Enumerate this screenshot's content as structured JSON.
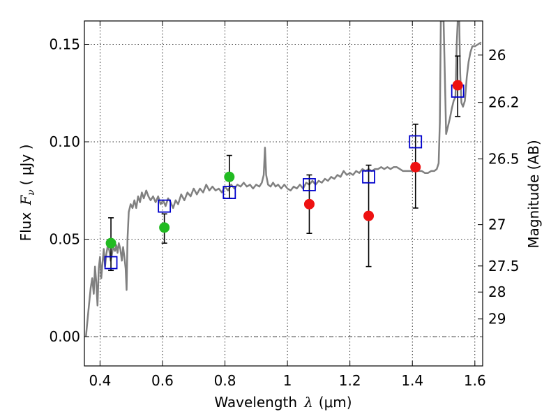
{
  "chart_data": {
    "type": "scatter",
    "title": "",
    "xlabel": "Wavelength",
    "xlabel_symbol": "λ",
    "xlabel_unit": "(μm)",
    "ylabel": "Flux",
    "ylabel_symbol": "F",
    "ylabel_subscript": "ν",
    "ylabel_unit": "( μJy )",
    "y2label": "Magnitude (AB)",
    "xlim": [
      0.35,
      1.625
    ],
    "ylim": [
      -0.015,
      0.162
    ],
    "grid": true,
    "x_ticks": [
      0.4,
      0.6,
      0.8,
      1.0,
      1.2,
      1.4,
      1.6
    ],
    "x_tick_labels": [
      "0.4",
      "0.6",
      "0.8",
      "1",
      "1.2",
      "1.4",
      "1.6"
    ],
    "y_ticks": [
      0.0,
      0.05,
      0.1,
      0.15
    ],
    "y_tick_labels": [
      "0.00",
      "0.05",
      "0.10",
      "0.15"
    ],
    "y2_ticks": [
      {
        "label": "26",
        "flux": 0.1445
      },
      {
        "label": "26.2",
        "flux": 0.1202
      },
      {
        "label": "26.5",
        "flux": 0.0912
      },
      {
        "label": "27",
        "flux": 0.0575
      },
      {
        "label": "27.5",
        "flux": 0.0363
      },
      {
        "label": "28",
        "flux": 0.0229
      },
      {
        "label": "29",
        "flux": 0.0091
      }
    ],
    "zero_line": 0.0,
    "series": [
      {
        "kind": "line",
        "color": "#808080",
        "points": [
          [
            0.355,
            0.0
          ],
          [
            0.362,
            0.012
          ],
          [
            0.37,
            0.025
          ],
          [
            0.375,
            0.03
          ],
          [
            0.38,
            0.022
          ],
          [
            0.384,
            0.036
          ],
          [
            0.388,
            0.028
          ],
          [
            0.392,
            0.016
          ],
          [
            0.396,
            0.035
          ],
          [
            0.4,
            0.041
          ],
          [
            0.404,
            0.03
          ],
          [
            0.408,
            0.038
          ],
          [
            0.412,
            0.045
          ],
          [
            0.416,
            0.036
          ],
          [
            0.42,
            0.042
          ],
          [
            0.425,
            0.047
          ],
          [
            0.43,
            0.044
          ],
          [
            0.434,
            0.039
          ],
          [
            0.438,
            0.042
          ],
          [
            0.442,
            0.046
          ],
          [
            0.448,
            0.044
          ],
          [
            0.452,
            0.047
          ],
          [
            0.456,
            0.043
          ],
          [
            0.46,
            0.048
          ],
          [
            0.465,
            0.045
          ],
          [
            0.47,
            0.039
          ],
          [
            0.474,
            0.046
          ],
          [
            0.478,
            0.041
          ],
          [
            0.482,
            0.035
          ],
          [
            0.485,
            0.024
          ],
          [
            0.488,
            0.05
          ],
          [
            0.492,
            0.064
          ],
          [
            0.498,
            0.068
          ],
          [
            0.504,
            0.066
          ],
          [
            0.51,
            0.07
          ],
          [
            0.516,
            0.066
          ],
          [
            0.522,
            0.072
          ],
          [
            0.528,
            0.069
          ],
          [
            0.534,
            0.074
          ],
          [
            0.54,
            0.071
          ],
          [
            0.548,
            0.075
          ],
          [
            0.555,
            0.072
          ],
          [
            0.562,
            0.07
          ],
          [
            0.57,
            0.072
          ],
          [
            0.578,
            0.069
          ],
          [
            0.586,
            0.072
          ],
          [
            0.594,
            0.068
          ],
          [
            0.602,
            0.07
          ],
          [
            0.61,
            0.067
          ],
          [
            0.618,
            0.071
          ],
          [
            0.626,
            0.069
          ],
          [
            0.634,
            0.066
          ],
          [
            0.642,
            0.07
          ],
          [
            0.65,
            0.068
          ],
          [
            0.66,
            0.073
          ],
          [
            0.67,
            0.07
          ],
          [
            0.68,
            0.074
          ],
          [
            0.69,
            0.072
          ],
          [
            0.7,
            0.076
          ],
          [
            0.71,
            0.073
          ],
          [
            0.72,
            0.076
          ],
          [
            0.73,
            0.074
          ],
          [
            0.74,
            0.078
          ],
          [
            0.75,
            0.075
          ],
          [
            0.76,
            0.077
          ],
          [
            0.77,
            0.075
          ],
          [
            0.78,
            0.076
          ],
          [
            0.79,
            0.074
          ],
          [
            0.8,
            0.077
          ],
          [
            0.81,
            0.075
          ],
          [
            0.82,
            0.078
          ],
          [
            0.83,
            0.076
          ],
          [
            0.84,
            0.078
          ],
          [
            0.85,
            0.077
          ],
          [
            0.86,
            0.079
          ],
          [
            0.87,
            0.077
          ],
          [
            0.88,
            0.078
          ],
          [
            0.89,
            0.076
          ],
          [
            0.9,
            0.078
          ],
          [
            0.91,
            0.077
          ],
          [
            0.918,
            0.079
          ],
          [
            0.924,
            0.083
          ],
          [
            0.928,
            0.097
          ],
          [
            0.932,
            0.083
          ],
          [
            0.938,
            0.078
          ],
          [
            0.946,
            0.077
          ],
          [
            0.954,
            0.079
          ],
          [
            0.962,
            0.077
          ],
          [
            0.97,
            0.078
          ],
          [
            0.98,
            0.076
          ],
          [
            0.99,
            0.078
          ],
          [
            1.0,
            0.076
          ],
          [
            1.01,
            0.075
          ],
          [
            1.02,
            0.077
          ],
          [
            1.03,
            0.076
          ],
          [
            1.04,
            0.078
          ],
          [
            1.05,
            0.076
          ],
          [
            1.06,
            0.079
          ],
          [
            1.07,
            0.078
          ],
          [
            1.08,
            0.08
          ],
          [
            1.09,
            0.078
          ],
          [
            1.1,
            0.08
          ],
          [
            1.11,
            0.079
          ],
          [
            1.12,
            0.081
          ],
          [
            1.13,
            0.08
          ],
          [
            1.14,
            0.082
          ],
          [
            1.15,
            0.081
          ],
          [
            1.16,
            0.083
          ],
          [
            1.17,
            0.082
          ],
          [
            1.18,
            0.085
          ],
          [
            1.19,
            0.083
          ],
          [
            1.2,
            0.084
          ],
          [
            1.21,
            0.083
          ],
          [
            1.22,
            0.085
          ],
          [
            1.23,
            0.084
          ],
          [
            1.24,
            0.086
          ],
          [
            1.25,
            0.085
          ],
          [
            1.26,
            0.086
          ],
          [
            1.27,
            0.085
          ],
          [
            1.28,
            0.086
          ],
          [
            1.29,
            0.086
          ],
          [
            1.3,
            0.087
          ],
          [
            1.31,
            0.086
          ],
          [
            1.32,
            0.087
          ],
          [
            1.33,
            0.086
          ],
          [
            1.34,
            0.087
          ],
          [
            1.35,
            0.087
          ],
          [
            1.36,
            0.086
          ],
          [
            1.37,
            0.085
          ],
          [
            1.38,
            0.085
          ],
          [
            1.39,
            0.085
          ],
          [
            1.4,
            0.085
          ],
          [
            1.41,
            0.086
          ],
          [
            1.42,
            0.085
          ],
          [
            1.43,
            0.085
          ],
          [
            1.44,
            0.084
          ],
          [
            1.45,
            0.084
          ],
          [
            1.46,
            0.085
          ],
          [
            1.47,
            0.085
          ],
          [
            1.478,
            0.086
          ],
          [
            1.484,
            0.089
          ],
          [
            1.488,
            0.11
          ],
          [
            1.491,
            0.162
          ],
          [
            1.5,
            0.162
          ],
          [
            1.503,
            0.14
          ],
          [
            1.508,
            0.104
          ],
          [
            1.514,
            0.108
          ],
          [
            1.52,
            0.112
          ],
          [
            1.526,
            0.117
          ],
          [
            1.532,
            0.121
          ],
          [
            1.538,
            0.123
          ],
          [
            1.542,
            0.15
          ],
          [
            1.545,
            0.162
          ],
          [
            1.55,
            0.162
          ],
          [
            1.553,
            0.135
          ],
          [
            1.557,
            0.12
          ],
          [
            1.562,
            0.118
          ],
          [
            1.568,
            0.121
          ],
          [
            1.574,
            0.133
          ],
          [
            1.58,
            0.141
          ],
          [
            1.586,
            0.146
          ],
          [
            1.592,
            0.149
          ],
          [
            1.6,
            0.149
          ],
          [
            1.61,
            0.15
          ],
          [
            1.62,
            0.151
          ]
        ]
      },
      {
        "kind": "errorbar",
        "color": "#000000",
        "bars": [
          {
            "x": 0.435,
            "low": 0.034,
            "high": 0.061
          },
          {
            "x": 0.606,
            "low": 0.048,
            "high": 0.063
          },
          {
            "x": 0.814,
            "low": 0.071,
            "high": 0.093
          },
          {
            "x": 1.07,
            "low": 0.053,
            "high": 0.083
          },
          {
            "x": 1.26,
            "low": 0.036,
            "high": 0.088
          },
          {
            "x": 1.41,
            "low": 0.066,
            "high": 0.109
          },
          {
            "x": 1.545,
            "low": 0.113,
            "high": 0.144
          }
        ]
      },
      {
        "kind": "square",
        "color": "#0000cc",
        "points": [
          [
            0.435,
            0.038
          ],
          [
            0.606,
            0.067
          ],
          [
            0.814,
            0.074
          ],
          [
            1.07,
            0.078
          ],
          [
            1.26,
            0.082
          ],
          [
            1.41,
            0.1
          ],
          [
            1.545,
            0.126
          ]
        ]
      },
      {
        "kind": "circle",
        "color": "#22bb22",
        "points": [
          [
            0.435,
            0.048
          ],
          [
            0.606,
            0.056
          ],
          [
            0.814,
            0.082
          ]
        ]
      },
      {
        "kind": "circle",
        "color": "#ee1111",
        "points": [
          [
            1.07,
            0.068
          ],
          [
            1.26,
            0.062
          ],
          [
            1.41,
            0.087
          ],
          [
            1.545,
            0.129
          ]
        ]
      }
    ]
  }
}
